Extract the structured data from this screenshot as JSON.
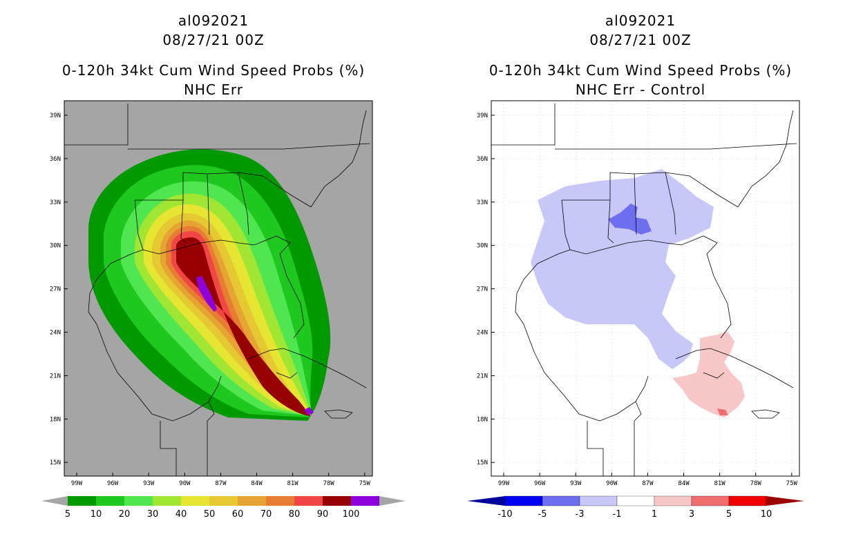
{
  "left_panel": {
    "storm_id": "al092021",
    "datetime": "08/27/21 00Z",
    "product": "0-120h 34kt Cum Wind Speed Probs (%)",
    "subtitle": "NHC Err",
    "lat_labels": [
      "39N",
      "36N",
      "33N",
      "30N",
      "27N",
      "24N",
      "21N",
      "18N",
      "15N"
    ],
    "lon_labels": [
      "99W",
      "96W",
      "93W",
      "90W",
      "87W",
      "84W",
      "81W",
      "78W",
      "75W"
    ],
    "colorbar": {
      "ticks": [
        "5",
        "10",
        "20",
        "30",
        "40",
        "50",
        "60",
        "70",
        "80",
        "90",
        "100"
      ],
      "colors": [
        "#009a00",
        "#1ec81e",
        "#50e650",
        "#a0e632",
        "#e6e632",
        "#e6c832",
        "#e6a532",
        "#e67d32",
        "#f04646",
        "#960000",
        "#8c00dc"
      ]
    }
  },
  "right_panel": {
    "storm_id": "al092021",
    "datetime": "08/27/21 00Z",
    "product": "0-120h 34kt Cum Wind Speed Probs (%)",
    "subtitle": "NHC Err - Control",
    "lat_labels": [
      "39N",
      "36N",
      "33N",
      "30N",
      "27N",
      "24N",
      "21N",
      "18N",
      "15N"
    ],
    "lon_labels": [
      "99W",
      "96W",
      "93W",
      "90W",
      "87W",
      "84W",
      "81W",
      "78W",
      "75W"
    ],
    "colorbar": {
      "ticks": [
        "-10",
        "-5",
        "-3",
        "-1",
        "1",
        "3",
        "5",
        "10"
      ],
      "colors": [
        "#00009b",
        "#0000f0",
        "#6e6ef0",
        "#c8c8f8",
        "#ffffff",
        "#f8c8c8",
        "#f06e6e",
        "#f00000",
        "#9b0000"
      ]
    }
  }
}
